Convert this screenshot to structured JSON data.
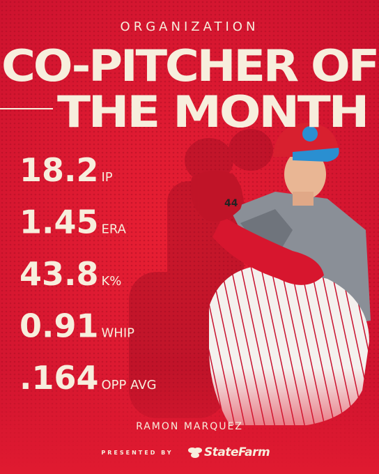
{
  "header": {
    "kicker": "ORGANIZATION",
    "title_lines": [
      "CO-PITCHER OF",
      "THE MONTH"
    ]
  },
  "stats": [
    {
      "value": "18.2",
      "label": "IP"
    },
    {
      "value": "1.45",
      "label": "ERA"
    },
    {
      "value": "43.8",
      "label": "K%"
    },
    {
      "value": "0.91",
      "label": "WHIP"
    },
    {
      "value": ".164",
      "label": "OPP AVG"
    }
  ],
  "player": {
    "name": "RAMON MARQUEZ"
  },
  "footer": {
    "presented_by": "PRESENTED BY",
    "sponsor": "StateFarm"
  }
}
